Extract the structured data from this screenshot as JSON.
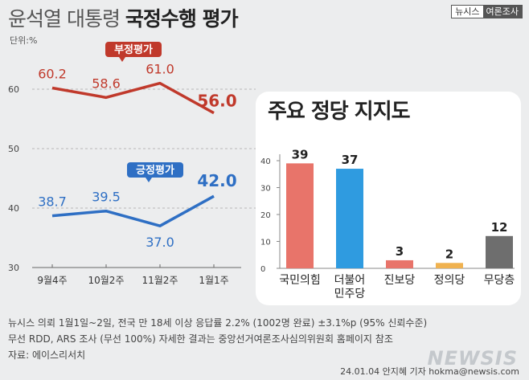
{
  "header": {
    "title_light": "윤석열 대통령",
    "title_bold": "국정수행 평가",
    "brand_left": "뉴시스",
    "brand_right": "여론조사"
  },
  "unit_label": "단위:%",
  "chart_data": [
    {
      "type": "line",
      "categories": [
        "9월4주",
        "10월2주",
        "11월2주",
        "1월1주"
      ],
      "series": [
        {
          "name": "부정평가",
          "values": [
            60.2,
            58.6,
            61.0,
            56.0
          ],
          "color": "#c0392b"
        },
        {
          "name": "긍정평가",
          "values": [
            38.7,
            39.5,
            37.0,
            42.0
          ],
          "color": "#2e6fc4"
        }
      ],
      "yticks": [
        30,
        40,
        50,
        60
      ],
      "ylim": [
        30,
        67
      ],
      "grid": true,
      "value_labels": [
        "60.2",
        "58.6",
        "61.0",
        "56.0",
        "38.7",
        "39.5",
        "37.0",
        "42.0"
      ]
    },
    {
      "type": "bar",
      "title": "주요 정당 지지도",
      "categories": [
        "국민의힘",
        "더불어\n민주당",
        "진보당",
        "정의당",
        "무당층"
      ],
      "values": [
        39,
        37,
        3,
        2,
        12
      ],
      "colors": [
        "#e8746a",
        "#2f9be0",
        "#e8746a",
        "#f0b250",
        "#6e6e6e"
      ],
      "yticks": [
        0,
        10,
        20,
        30,
        40
      ],
      "ylim": [
        0,
        40
      ]
    }
  ],
  "footer": {
    "line1": "뉴시스 의뢰 1월1일~2일, 전국 만 18세 이상 응답률 2.2% (1002명 완료) ±3.1%p (95% 신뢰수준)",
    "line2": "무선 RDD, ARS 조사 (무선 100%) 자세한 결과는 중앙선거여론조사심의위원회 홈페이지 참조",
    "line3": "자료: 에이스리서치",
    "credit": "24.01.04 안지혜 기자 hokma@newsis.com",
    "watermark": "NEWSIS"
  }
}
